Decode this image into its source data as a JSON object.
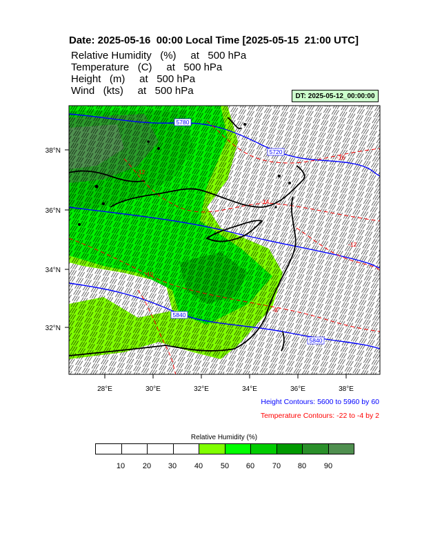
{
  "title": "Date: 2025-05-16  00:00 Local Time [2025-05-15  21:00 UTC]",
  "fields": [
    "Relative Humidity   (%)     at   500 hPa",
    "Temperature   (C)     at   500 hPa",
    "Height   (m)     at   500 hPa",
    "Wind   (kts)     at   500 hPa"
  ],
  "dt_label": "DT: 2025-05-12_00:00:00",
  "map": {
    "lon_ticks": [
      "28°E",
      "30°E",
      "32°E",
      "34°E",
      "36°E",
      "38°E"
    ],
    "lat_ticks": [
      "38°N",
      "36°N",
      "34°N",
      "32°N"
    ],
    "height_contour_labels": [
      "5780",
      "5720",
      "5840",
      "5840"
    ],
    "temp_contour_labels": [
      "-16",
      "-12",
      "-14",
      "-12",
      "-10",
      "-8"
    ]
  },
  "legend": {
    "height_text": "Height Contours: 5600 to 5960 by 60",
    "temp_text": "Temperature Contours: -22 to -4 by 2",
    "height_color": "#0000ff",
    "temp_color": "#ff0000"
  },
  "colorbar": {
    "title": "Relative Humidity  (%)",
    "labels": [
      "10",
      "20",
      "30",
      "40",
      "50",
      "60",
      "70",
      "80",
      "90"
    ],
    "colors": [
      "#ffffff",
      "#ffffff",
      "#ffffff",
      "#ffffff",
      "#80ff00",
      "#00ff00",
      "#00cc00",
      "#009900",
      "#2a8f2a",
      "#4f8f4f"
    ]
  }
}
